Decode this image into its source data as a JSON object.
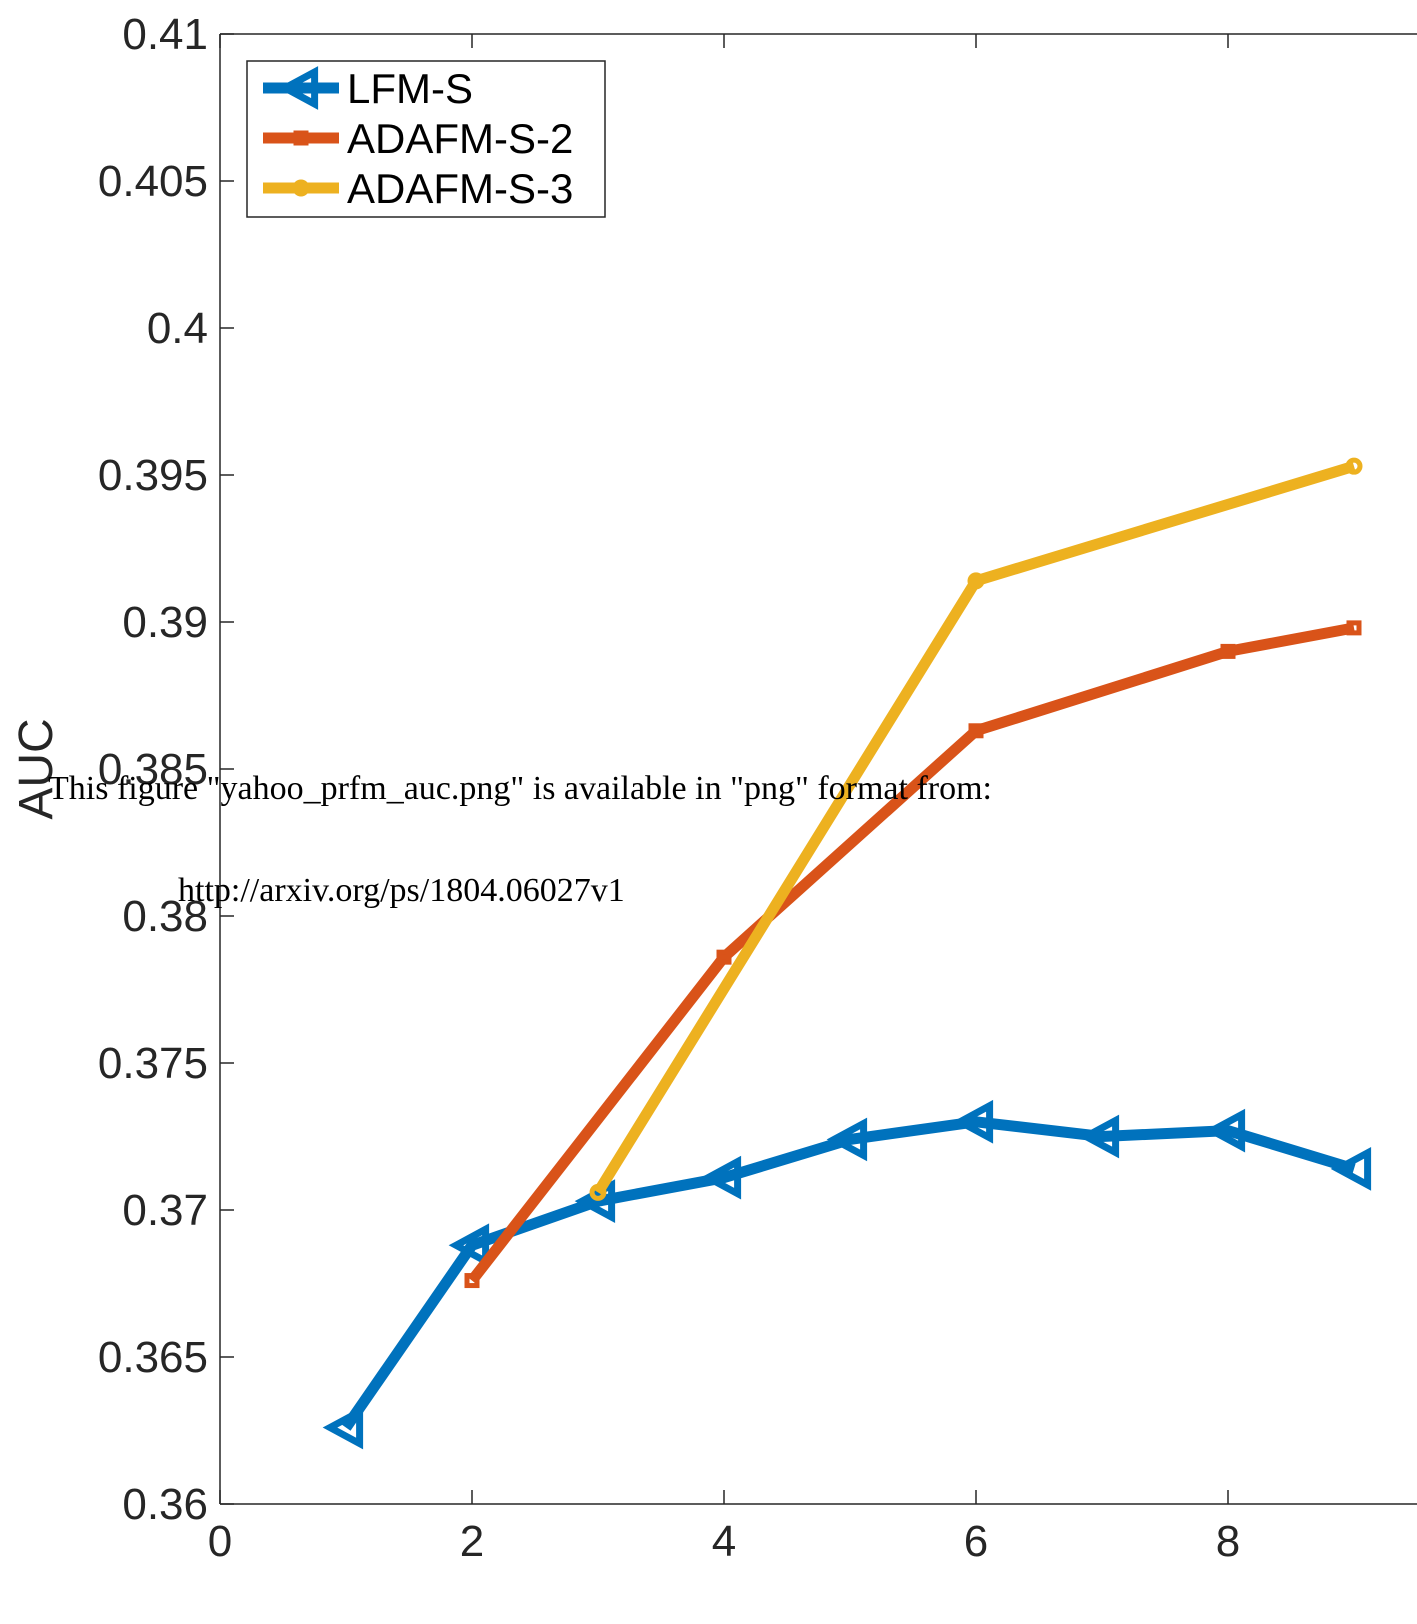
{
  "chart_data": {
    "type": "line",
    "ylabel": "AUC",
    "xlim": [
      0,
      9.5
    ],
    "ylim": [
      0.36,
      0.41
    ],
    "x_ticks": [
      "0",
      "2",
      "4",
      "6",
      "8"
    ],
    "y_ticks": [
      "0.36",
      "0.365",
      "0.37",
      "0.375",
      "0.38",
      "0.385",
      "0.39",
      "0.395",
      "0.4",
      "0.405",
      "0.41"
    ],
    "legend_position": "top-left",
    "grid": false,
    "series": [
      {
        "name": "LFM-S",
        "color": "#0072BD",
        "marker": "triangle-left",
        "x": [
          1,
          2,
          3,
          4,
          5,
          6,
          7,
          8,
          9
        ],
        "y": [
          0.3626,
          0.3688,
          0.3703,
          0.3711,
          0.3724,
          0.373,
          0.3725,
          0.3727,
          0.3714
        ]
      },
      {
        "name": "ADAFM-S-2",
        "color": "#D95319",
        "marker": "square",
        "x": [
          2,
          4,
          6,
          8,
          9
        ],
        "y": [
          0.3676,
          0.3786,
          0.3863,
          0.389,
          0.3898
        ]
      },
      {
        "name": "ADAFM-S-3",
        "color": "#EDB120",
        "marker": "circle",
        "x": [
          3,
          6,
          9
        ],
        "y": [
          0.3706,
          0.3914,
          0.3953
        ]
      }
    ]
  },
  "overlay": {
    "line1": "This figure \"yahoo_prfm_auc.png\" is available in \"png\"  format from:",
    "line2": "http://arxiv.org/ps/1804.06027v1"
  }
}
